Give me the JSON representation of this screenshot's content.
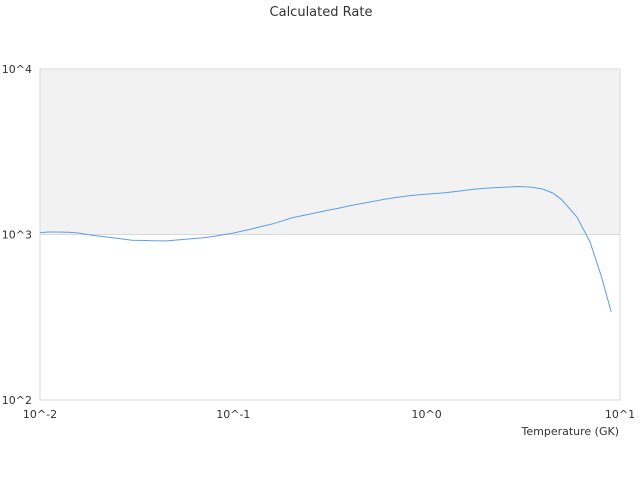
{
  "chart_data": {
    "type": "line",
    "title": "Calculated Rate",
    "xlabel": "Temperature (GK)",
    "ylabel": "",
    "x_scale": "log",
    "y_scale": "log",
    "xlim": [
      0.01,
      10
    ],
    "ylim": [
      100,
      10000
    ],
    "x_tick_labels": [
      "10^-2",
      "10^-1",
      "10^0",
      "10^1"
    ],
    "y_tick_labels": [
      "10^2",
      "10^3",
      "10^4"
    ],
    "shaded_band": [
      1000,
      10000
    ],
    "grid": false,
    "legend": "none",
    "colors": {
      "line": "#5aa0e6",
      "band": "#f2f2f2",
      "border": "#d9d9d9"
    },
    "series": [
      {
        "x": [
          0.01,
          0.011,
          0.012,
          0.014,
          0.016,
          0.018,
          0.02,
          0.025,
          0.03,
          0.035,
          0.04,
          0.045,
          0.05,
          0.06,
          0.07,
          0.08,
          0.09,
          0.1,
          0.11,
          0.12,
          0.13,
          0.14,
          0.15,
          0.16,
          0.18,
          0.2,
          0.25,
          0.3,
          0.35,
          0.4,
          0.45,
          0.5,
          0.6,
          0.7,
          0.8,
          0.9,
          1.0,
          1.25,
          1.5,
          1.75,
          2.0,
          2.5,
          3.0,
          3.5,
          4.0,
          4.5,
          5.0,
          6.0,
          7.0,
          8.0,
          9.0
        ],
        "values": [
          1025,
          1035,
          1035,
          1033,
          1020,
          995,
          980,
          950,
          923,
          920,
          915,
          915,
          925,
          940,
          955,
          975,
          1000,
          1020,
          1045,
          1070,
          1095,
          1120,
          1140,
          1160,
          1210,
          1260,
          1330,
          1390,
          1440,
          1490,
          1530,
          1565,
          1630,
          1675,
          1710,
          1735,
          1755,
          1790,
          1835,
          1875,
          1905,
          1930,
          1950,
          1930,
          1880,
          1780,
          1620,
          1270,
          900,
          560,
          340
        ]
      }
    ]
  }
}
